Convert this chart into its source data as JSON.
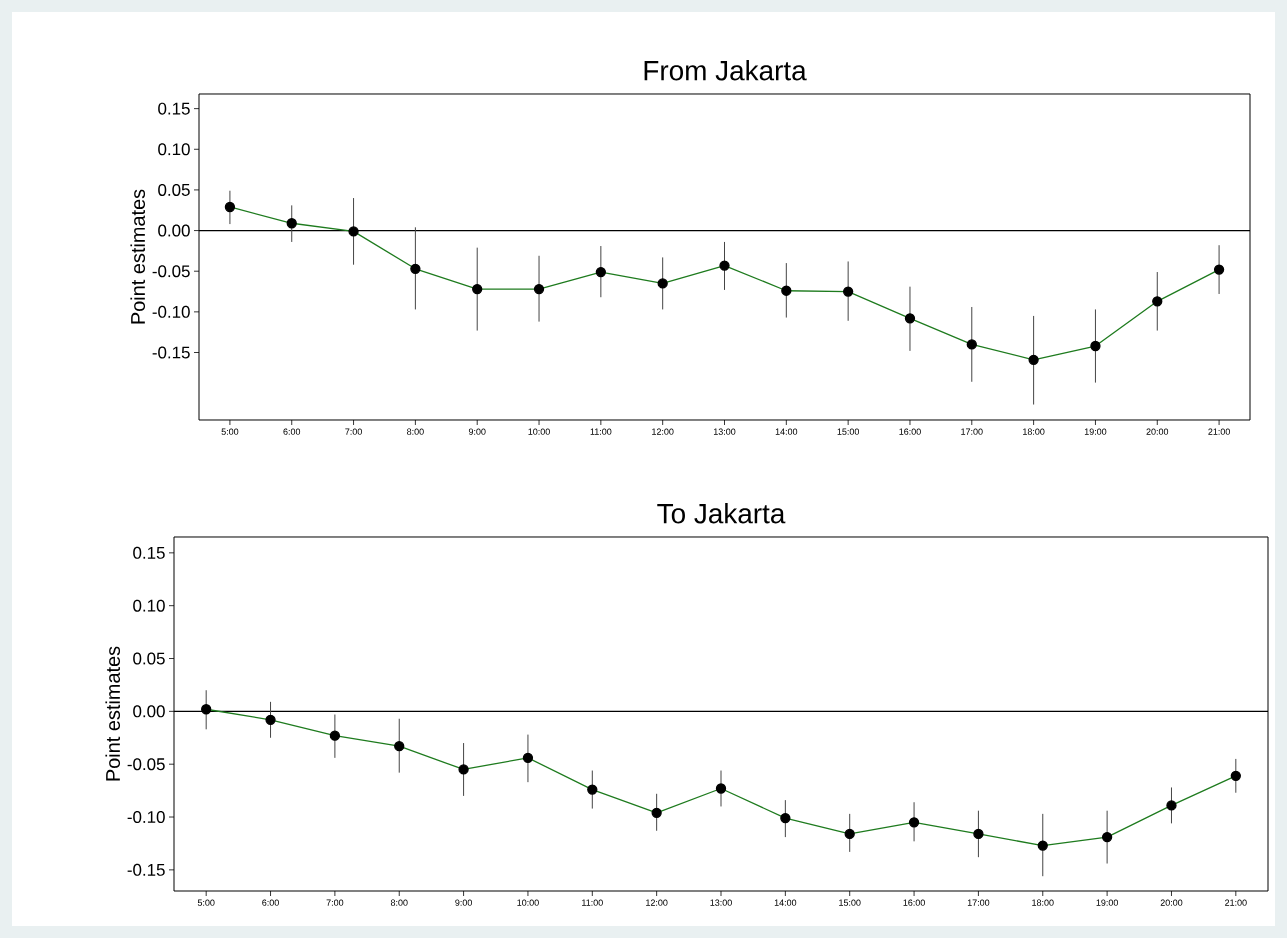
{
  "chart_data": [
    {
      "type": "line",
      "title": "From Jakarta",
      "ylabel": "Point estimates",
      "marker": "circle",
      "categories": [
        "5:00",
        "6:00",
        "7:00",
        "8:00",
        "9:00",
        "10:00",
        "11:00",
        "12:00",
        "13:00",
        "14:00",
        "15:00",
        "16:00",
        "17:00",
        "18:00",
        "19:00",
        "20:00",
        "21:00"
      ],
      "series": [
        {
          "color": "#1e7b1e",
          "values": [
            0.029,
            0.009,
            -0.001,
            -0.047,
            -0.072,
            -0.072,
            -0.051,
            -0.065,
            -0.043,
            -0.074,
            -0.075,
            -0.108,
            -0.14,
            -0.159,
            -0.142,
            -0.087,
            -0.048
          ],
          "errors": [
            [
              0.008,
              0.049
            ],
            [
              -0.014,
              0.031
            ],
            [
              -0.042,
              0.04
            ],
            [
              -0.097,
              0.004
            ],
            [
              -0.123,
              -0.021
            ],
            [
              -0.112,
              -0.031
            ],
            [
              -0.082,
              -0.019
            ],
            [
              -0.097,
              -0.033
            ],
            [
              -0.073,
              -0.014
            ],
            [
              -0.107,
              -0.04
            ],
            [
              -0.111,
              -0.038
            ],
            [
              -0.148,
              -0.069
            ],
            [
              -0.186,
              -0.094
            ],
            [
              -0.214,
              -0.105
            ],
            [
              -0.187,
              -0.097
            ],
            [
              -0.123,
              -0.051
            ],
            [
              -0.078,
              -0.018
            ]
          ]
        }
      ],
      "ylim": [
        -0.233,
        0.168
      ],
      "yticks": [
        0.15,
        {
          "value": 0.1,
          "label": "0.10"
        },
        0.05,
        {
          "value": 0,
          "label": "0.00"
        },
        -0.05,
        {
          "value": -0.1,
          "label": "-0.10"
        },
        -0.15
      ],
      "ref_lines": [
        {
          "axis": "y",
          "value": 0
        }
      ]
    },
    {
      "type": "line",
      "title": "To Jakarta",
      "ylabel": "Point estimates",
      "marker": "circle",
      "categories": [
        "5:00",
        "6:00",
        "7:00",
        "8:00",
        "9:00",
        "10:00",
        "11:00",
        "12:00",
        "13:00",
        "14:00",
        "15:00",
        "16:00",
        "17:00",
        "18:00",
        "19:00",
        "20:00",
        "21:00"
      ],
      "series": [
        {
          "color": "#1e7b1e",
          "values": [
            0.002,
            -0.008,
            -0.023,
            -0.033,
            -0.055,
            -0.044,
            -0.074,
            -0.096,
            -0.073,
            -0.101,
            -0.116,
            -0.105,
            -0.116,
            -0.127,
            -0.119,
            -0.089,
            -0.061
          ],
          "errors": [
            [
              -0.017,
              0.02
            ],
            [
              -0.025,
              0.009
            ],
            [
              -0.044,
              -0.003
            ],
            [
              -0.058,
              -0.007
            ],
            [
              -0.08,
              -0.03
            ],
            [
              -0.067,
              -0.022
            ],
            [
              -0.092,
              -0.056
            ],
            [
              -0.113,
              -0.078
            ],
            [
              -0.09,
              -0.056
            ],
            [
              -0.119,
              -0.084
            ],
            [
              -0.133,
              -0.097
            ],
            [
              -0.123,
              -0.086
            ],
            [
              -0.138,
              -0.094
            ],
            [
              -0.156,
              -0.097
            ],
            [
              -0.144,
              -0.094
            ],
            [
              -0.106,
              -0.072
            ],
            [
              -0.077,
              -0.045
            ]
          ]
        }
      ],
      "ylim": [
        -0.17,
        0.165
      ],
      "yticks": [
        0.15,
        {
          "value": 0.1,
          "label": "0.10"
        },
        0.05,
        {
          "value": 0,
          "label": "0.00"
        },
        -0.05,
        {
          "value": -0.1,
          "label": "-0.10"
        },
        -0.15
      ],
      "ref_lines": [
        {
          "axis": "y",
          "value": 0
        }
      ]
    }
  ]
}
